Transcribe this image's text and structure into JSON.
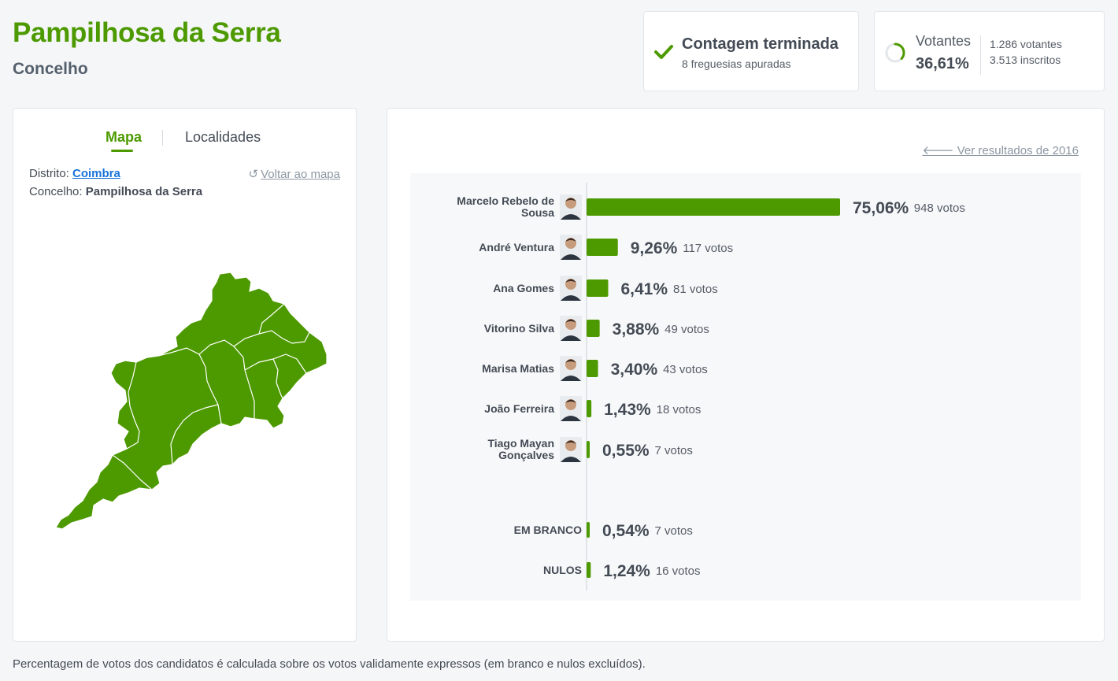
{
  "header": {
    "title": "Pampilhosa da Serra",
    "subtitle": "Concelho"
  },
  "status": {
    "title": "Contagem terminada",
    "subtitle": "8 freguesias apuradas",
    "icon": "check-icon",
    "color": "#4d9a00"
  },
  "turnout": {
    "label": "Votantes",
    "percent": "36,61%",
    "percent_value": 0.3661,
    "voters": "1.286 votantes",
    "registered": "3.513 inscritos"
  },
  "map_panel": {
    "tabs": [
      {
        "label": "Mapa",
        "active": true
      },
      {
        "label": "Localidades",
        "active": false
      }
    ],
    "district_label": "Distrito:",
    "district_value": "Coimbra",
    "concelho_label": "Concelho:",
    "concelho_value": "Pampilhosa da Serra",
    "back_label": "Voltar ao mapa",
    "map_fill": "#4d9a00"
  },
  "results": {
    "prev_label": "Ver resultados de 2016",
    "bar_color": "#4d9a00"
  },
  "chart_data": {
    "type": "bar",
    "orientation": "horizontal",
    "candidates": [
      {
        "name": "Marcelo Rebelo de Sousa",
        "name_lines": [
          "Marcelo Rebelo de",
          "Sousa"
        ],
        "pct": 75.06,
        "pct_label": "75,06%",
        "votes_label": "948 votos"
      },
      {
        "name": "André Ventura",
        "name_lines": [
          "André Ventura"
        ],
        "pct": 9.26,
        "pct_label": "9,26%",
        "votes_label": "117 votos"
      },
      {
        "name": "Ana Gomes",
        "name_lines": [
          "Ana Gomes"
        ],
        "pct": 6.41,
        "pct_label": "6,41%",
        "votes_label": "81 votos"
      },
      {
        "name": "Vitorino Silva",
        "name_lines": [
          "Vitorino Silva"
        ],
        "pct": 3.88,
        "pct_label": "3,88%",
        "votes_label": "49 votos"
      },
      {
        "name": "Marisa Matias",
        "name_lines": [
          "Marisa Matias"
        ],
        "pct": 3.4,
        "pct_label": "3,40%",
        "votes_label": "43 votos"
      },
      {
        "name": "João Ferreira",
        "name_lines": [
          "João Ferreira"
        ],
        "pct": 1.43,
        "pct_label": "1,43%",
        "votes_label": "18 votos"
      },
      {
        "name": "Tiago Mayan Gonçalves",
        "name_lines": [
          "Tiago Mayan",
          "Gonçalves"
        ],
        "pct": 0.55,
        "pct_label": "0,55%",
        "votes_label": "7 votos"
      }
    ],
    "others": [
      {
        "name": "EM BRANCO",
        "pct": 0.54,
        "pct_label": "0,54%",
        "votes_label": "7 votos"
      },
      {
        "name": "NULOS",
        "pct": 1.24,
        "pct_label": "1,24%",
        "votes_label": "16 votos"
      }
    ]
  },
  "footnote": "Percentagem de votos dos candidatos é calculada sobre os votos validamente expressos (em branco e nulos excluídos)."
}
